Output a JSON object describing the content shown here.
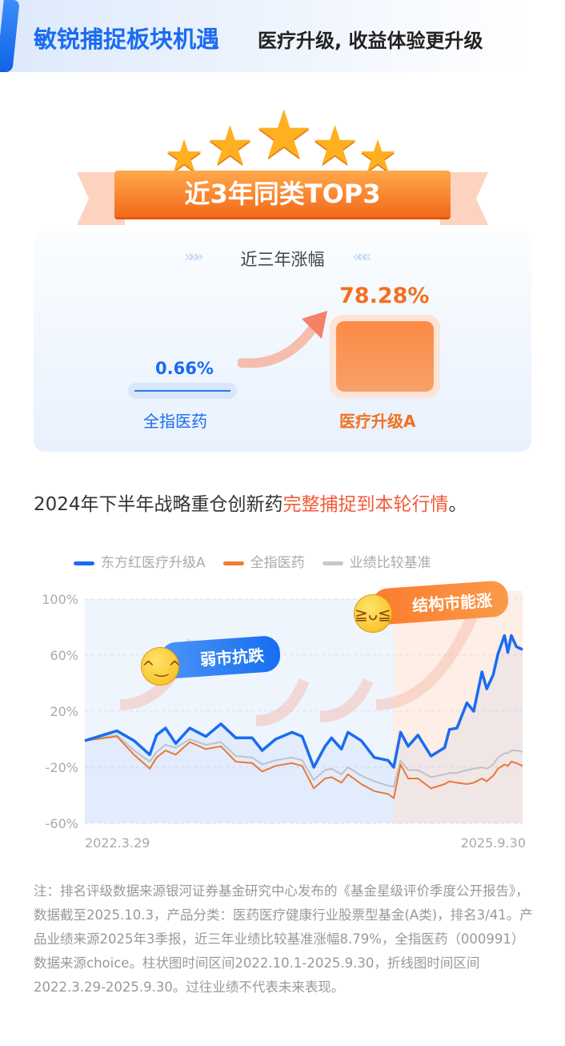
{
  "header": {
    "title": "敏锐捕捉板块机遇",
    "subtitle": "医疗升级, 收益体验更升级"
  },
  "badge": {
    "label": "近3年同类TOP3",
    "stars": 5
  },
  "comparison": {
    "title": "近三年涨幅",
    "items": [
      {
        "label": "全指医药",
        "value": "0.66%",
        "color": "#1a6cf0"
      },
      {
        "label": "医疗升级A",
        "value": "78.28%",
        "color": "#f27020"
      }
    ]
  },
  "headline": {
    "text": "2024年下半年战略重仓创新药",
    "highlight": "完整捕捉到本轮行情",
    "end": "。"
  },
  "callouts": {
    "weak": "弱市抗跌",
    "strong": "结构市能涨"
  },
  "chart_data": {
    "type": "line",
    "ylim": [
      -60,
      100
    ],
    "yticks": [
      "100%",
      "60%",
      "20%",
      "-20%",
      "-60%"
    ],
    "ytick_values": [
      100,
      60,
      20,
      -20,
      -60
    ],
    "xtick_labels": [
      "2022.3.29",
      "2025.9.30"
    ],
    "legend_position": "top",
    "grid": "horizontal dashed",
    "x": [
      "2022-03-29",
      "2022-07-01",
      "2022-08-20",
      "2022-10-05",
      "2022-10-25",
      "2022-11-20",
      "2022-12-20",
      "2023-01-30",
      "2023-03-18",
      "2023-05-01",
      "2023-06-14",
      "2023-08-01",
      "2023-08-30",
      "2023-10-08",
      "2023-11-25",
      "2023-12-25",
      "2024-01-28",
      "2024-03-01",
      "2024-03-20",
      "2024-04-18",
      "2024-05-07",
      "2024-06-15",
      "2024-07-23",
      "2024-09-01",
      "2024-09-18",
      "2024-10-08",
      "2024-10-30",
      "2024-11-28",
      "2025-01-05",
      "2025-02-14",
      "2025-02-28",
      "2025-03-22",
      "2025-04-20",
      "2025-05-10",
      "2025-06-03",
      "2025-06-17",
      "2025-07-06",
      "2025-07-20",
      "2025-08-08",
      "2025-08-18",
      "2025-08-28",
      "2025-09-12",
      "2025-09-30"
    ],
    "highlight_from": "2024-09-18",
    "series": [
      {
        "name": "东方红医疗升级A",
        "color": "#1a6cf0",
        "values": [
          -1,
          6,
          -1,
          -11,
          3,
          8,
          -3,
          8,
          2,
          11,
          1,
          1,
          -8,
          0,
          5,
          2,
          -20,
          -5,
          1,
          -7,
          5,
          -1,
          -13,
          -15,
          -20,
          5,
          -5,
          3,
          -12,
          -6,
          7,
          8,
          26,
          20,
          48,
          36,
          46,
          61,
          74,
          62,
          74,
          66,
          64
        ]
      },
      {
        "name": "全指医药",
        "color": "#f57b2c",
        "values": [
          -1,
          2,
          -11,
          -21,
          -13,
          -8,
          -11,
          -2,
          -7,
          -5,
          -16,
          -17,
          -23,
          -19,
          -17,
          -19,
          -35,
          -28,
          -27,
          -31,
          -25,
          -32,
          -37,
          -39,
          -42,
          -18,
          -28,
          -28,
          -35,
          -32,
          -30,
          -31,
          -32,
          -31,
          -28,
          -30,
          -26,
          -21,
          -18,
          -19,
          -16,
          -17,
          -19
        ]
      },
      {
        "name": "业绩比较基准",
        "color": "#c8c8c8",
        "values": [
          -1,
          3,
          -8,
          -16,
          -9,
          -4,
          -6,
          0,
          -4,
          -2,
          -12,
          -13,
          -18,
          -15,
          -13,
          -15,
          -29,
          -22,
          -21,
          -25,
          -20,
          -26,
          -30,
          -33,
          -34,
          -15,
          -22,
          -22,
          -27,
          -25,
          -24,
          -24,
          -22,
          -21,
          -20,
          -21,
          -18,
          -13,
          -10,
          -10,
          -8,
          -8,
          -9
        ]
      }
    ]
  },
  "note": "注：排名评级数据来源银河证券基金研究中心发布的《基金星级评价季度公开报告》，数据截至2025.10.3，产品分类：医药医疗健康行业股票型基金(A类)，排名3/41。产品业绩来源2025年3季报，近三年业绩比较基准涨幅8.79%，全指医药（000991）数据来源choice。柱状图时间区间2022.10.1-2025.9.30，折线图时间区间2022.3.29-2025.9.30。过往业绩不代表未来表现。"
}
